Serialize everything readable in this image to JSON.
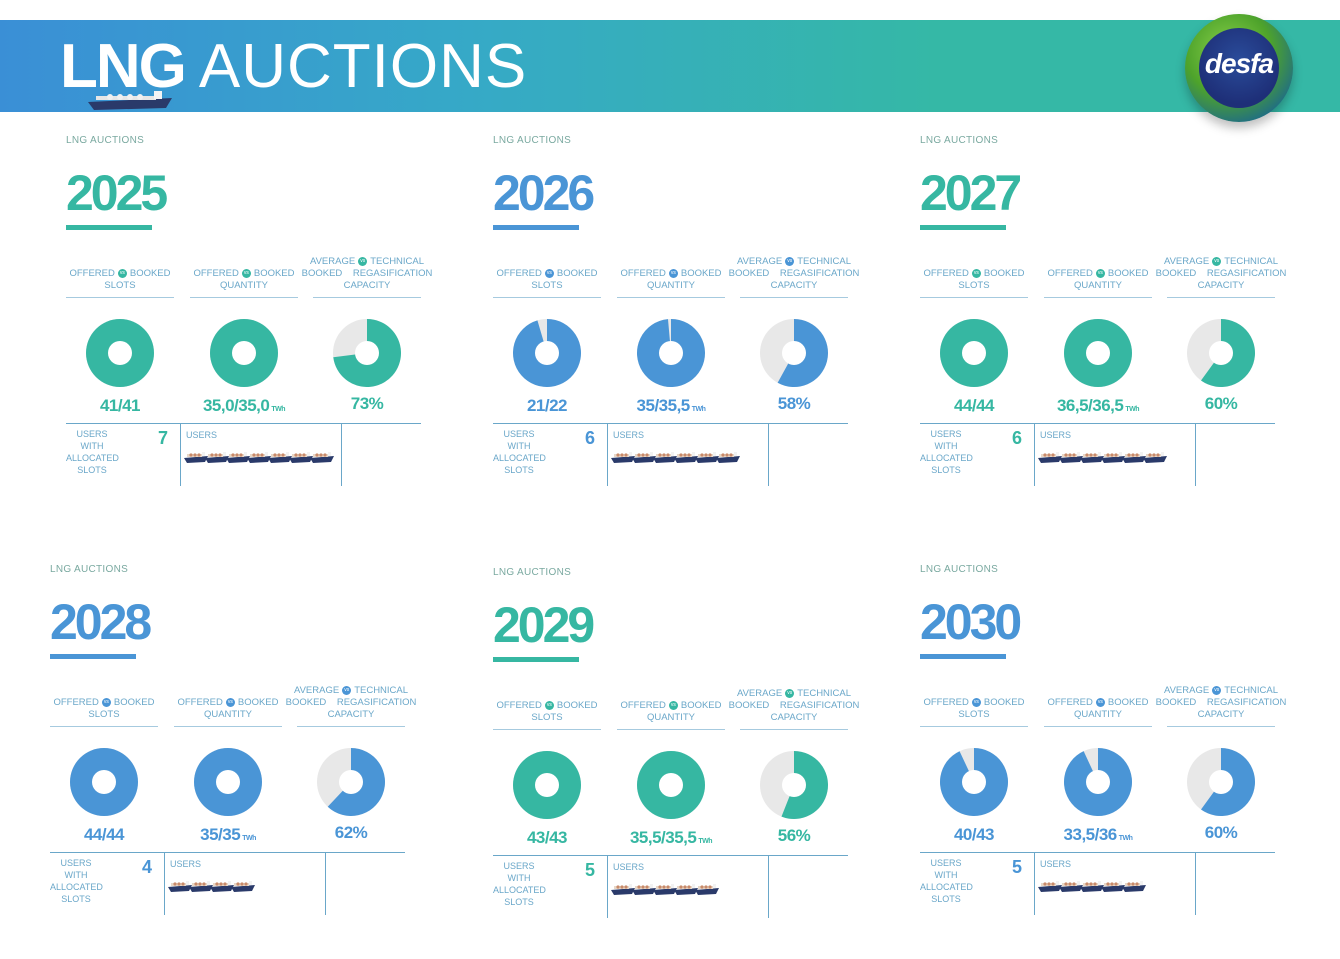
{
  "header": {
    "title_bold": "LNG",
    "title_light": "AUCTIONS",
    "logo_text": "desfa"
  },
  "colors": {
    "teal": "#36b7a2",
    "blue": "#4a95d6",
    "grey": "#e8e8e8",
    "label": "#6aa7c9"
  },
  "labels": {
    "kicker": "LNG AUCTIONS",
    "offered": "OFFERED",
    "booked": "BOOKED",
    "slots": "SLOTS",
    "quantity": "QUANTITY",
    "average": "AVERAGE",
    "booked_cap": "BOOKED",
    "technical": "TECHNICAL",
    "regas": "REGASIFICATION",
    "capacity": "CAPACITY",
    "vs": "vs",
    "users_with": "USERS WITH ALLOCATED SLOTS",
    "users": "USERS",
    "twh": "TWh"
  },
  "chart_data": [
    {
      "type": "pie",
      "year": "2025",
      "color": "teal",
      "slots_booked": 41,
      "slots_offered": 41,
      "slots_text": "41/41",
      "qty_booked": 35.0,
      "qty_offered": 35.0,
      "qty_text": "35,0/35,0",
      "qty_unit": "TWh",
      "avg_pct": 73,
      "avg_text": "73%",
      "users": "7",
      "user_count": 7
    },
    {
      "type": "pie",
      "year": "2026",
      "color": "blue",
      "slots_booked": 21,
      "slots_offered": 22,
      "slots_text": "21/22",
      "qty_booked": 35,
      "qty_offered": 35.5,
      "qty_text": "35/35,5",
      "qty_unit": "TWh",
      "avg_pct": 58,
      "avg_text": "58%",
      "users": "6",
      "user_count": 6
    },
    {
      "type": "pie",
      "year": "2027",
      "color": "teal",
      "slots_booked": 44,
      "slots_offered": 44,
      "slots_text": "44/44",
      "qty_booked": 36.5,
      "qty_offered": 36.5,
      "qty_text": "36,5/36,5",
      "qty_unit": "TWh",
      "avg_pct": 60,
      "avg_text": "60%",
      "users": "6",
      "user_count": 6
    },
    {
      "type": "pie",
      "year": "2028",
      "color": "blue",
      "slots_booked": 44,
      "slots_offered": 44,
      "slots_text": "44/44",
      "qty_booked": 35,
      "qty_offered": 35,
      "qty_text": "35/35",
      "qty_unit": "TWh",
      "avg_pct": 62,
      "avg_text": "62%",
      "users": "4",
      "user_count": 4
    },
    {
      "type": "pie",
      "year": "2029",
      "color": "teal",
      "slots_booked": 43,
      "slots_offered": 43,
      "slots_text": "43/43",
      "qty_booked": 35.5,
      "qty_offered": 35.5,
      "qty_text": "35,5/35,5",
      "qty_unit": "TWh",
      "avg_pct": 56,
      "avg_text": "56%",
      "users": "5",
      "user_count": 5
    },
    {
      "type": "pie",
      "year": "2030",
      "color": "blue",
      "slots_booked": 40,
      "slots_offered": 43,
      "slots_text": "40/43",
      "qty_booked": 33.5,
      "qty_offered": 36,
      "qty_text": "33,5/36",
      "qty_unit": "TWh",
      "avg_pct": 60,
      "avg_text": "60%",
      "users": "5",
      "user_count": 5
    }
  ]
}
